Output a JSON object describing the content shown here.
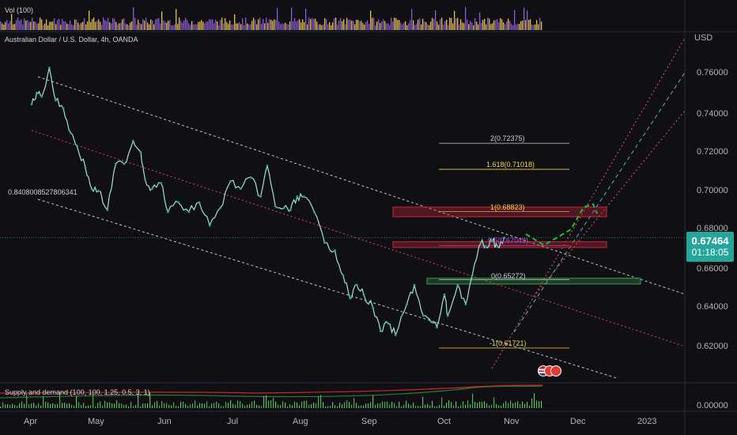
{
  "panels": {
    "volume_label": "Vol (100)",
    "supply_demand_label": "Supply and demand (100, 100, 1.25, 0.5, 3, 1)"
  },
  "symbol": {
    "title": "Australian Dollar / U.S. Dollar, 4h, OANDA",
    "currency": "USD"
  },
  "price_axis": {
    "ticks": [
      "0.76000",
      "0.74000",
      "0.72000",
      "0.70000",
      "0.68000",
      "0.66000",
      "0.64000",
      "0.62000"
    ],
    "volume_tick": "0.00000"
  },
  "time_axis": {
    "ticks": [
      "Apr",
      "May",
      "Jun",
      "Jul",
      "Aug",
      "Sep",
      "Oct",
      "Nov",
      "Dec",
      "2023"
    ]
  },
  "current_price": {
    "value": "0.67464",
    "countdown": "01:18:05",
    "color": "#26a69a"
  },
  "fib_levels": [
    {
      "label": "2(0.72375)",
      "color": "#d1d4dc"
    },
    {
      "label": "1.618(0.71018)",
      "color": "#f5d64b"
    },
    {
      "label": "1(0.68823)",
      "color": "#f5d64b"
    },
    {
      "label": "0.5(0.67049)",
      "color": "#b659d6"
    },
    {
      "label": "0(0.65272)",
      "color": "#d1d4dc"
    },
    {
      "label": "-1(0.61721)",
      "color": "#f5d64b"
    }
  ],
  "channel_label": "0.8408008527806341",
  "chart_data": {
    "type": "line",
    "title": "Australian Dollar / U.S. Dollar, 4h, OANDA",
    "ylabel": "USD",
    "ylim": [
      0.6125,
      0.772
    ],
    "x_unit": "month index (Apr=0 ... Dec=8, 2023=9)",
    "series": [
      {
        "name": "",
        "x": [
          0,
          0.08,
          0.16,
          0.28,
          0.38,
          0.5,
          0.62,
          0.72,
          0.85,
          0.95,
          1.05,
          1.18,
          1.3,
          1.42,
          1.55,
          1.66,
          1.72,
          1.82,
          1.95,
          2.05,
          2.2,
          2.35,
          2.5,
          2.65,
          2.8,
          2.95,
          3.1,
          3.25,
          3.4,
          3.5,
          3.62,
          3.75,
          3.85,
          3.95,
          4.05,
          4.2,
          4.35,
          4.5,
          4.62,
          4.72,
          4.82,
          4.92,
          5.05,
          5.15,
          5.25,
          5.35,
          5.5,
          5.6,
          5.72,
          5.82,
          5.9,
          6.0,
          6.05,
          6.2,
          6.32,
          6.42,
          6.55,
          6.62,
          6.72,
          6.8,
          6.9
        ],
        "y": [
          0.744,
          0.75,
          0.748,
          0.763,
          0.746,
          0.742,
          0.729,
          0.722,
          0.711,
          0.7,
          0.699,
          0.689,
          0.713,
          0.713,
          0.725,
          0.719,
          0.705,
          0.7,
          0.703,
          0.688,
          0.693,
          0.688,
          0.693,
          0.681,
          0.69,
          0.704,
          0.7,
          0.706,
          0.696,
          0.712,
          0.691,
          0.69,
          0.689,
          0.696,
          0.696,
          0.688,
          0.672,
          0.668,
          0.655,
          0.643,
          0.65,
          0.645,
          0.638,
          0.626,
          0.63,
          0.624,
          0.64,
          0.65,
          0.634,
          0.631,
          0.628,
          0.645,
          0.634,
          0.65,
          0.64,
          0.655,
          0.672,
          0.67,
          0.673,
          0.67,
          0.6746
        ]
      }
    ]
  }
}
